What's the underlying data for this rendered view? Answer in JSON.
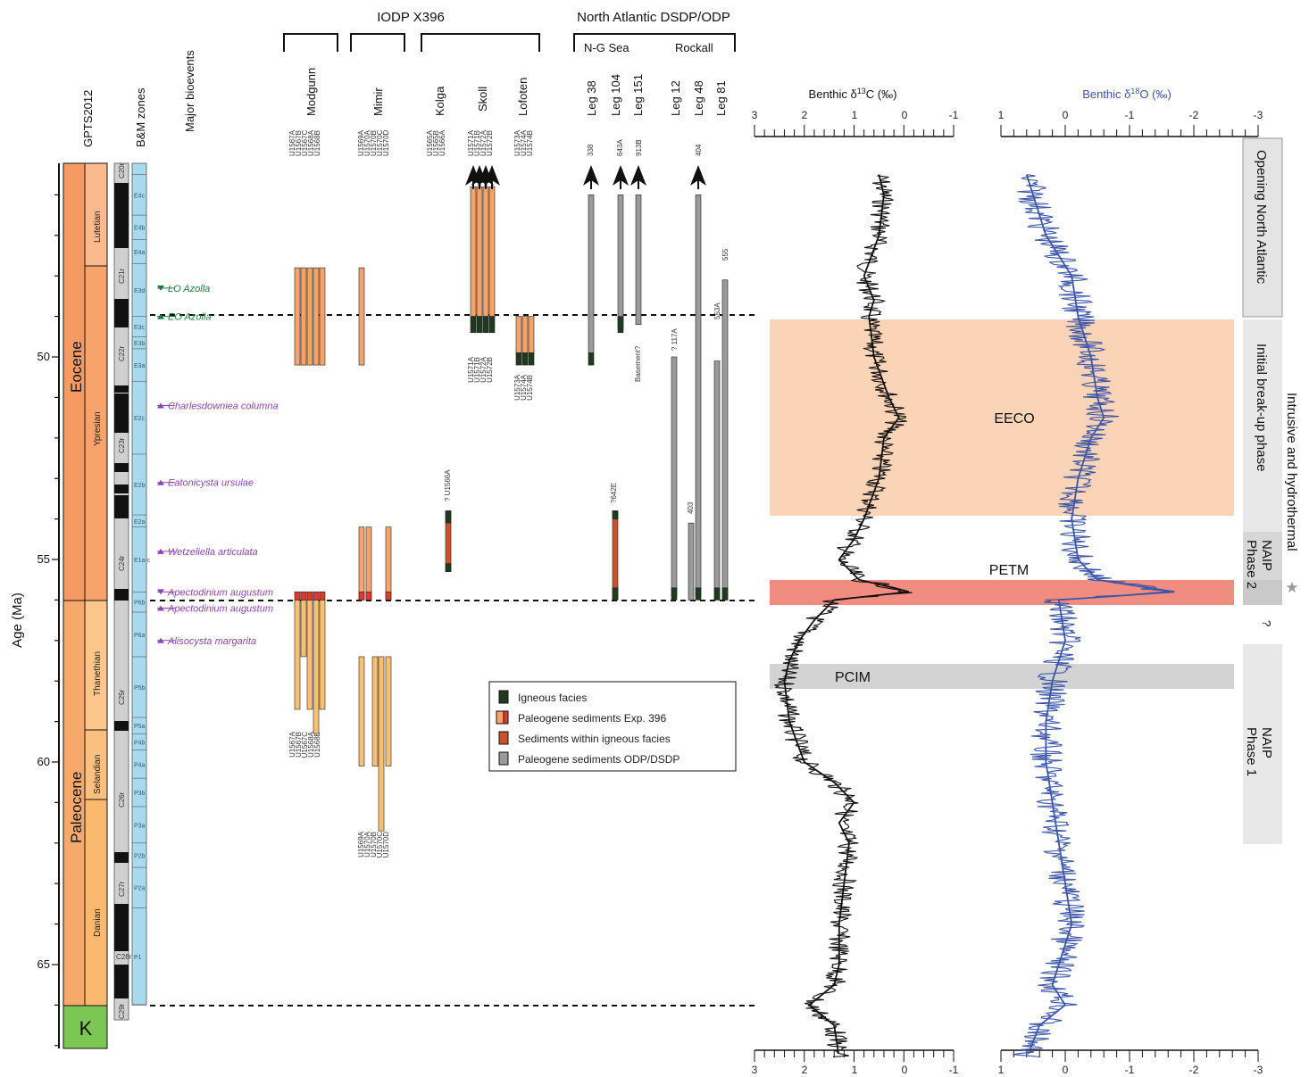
{
  "headers": {
    "gpts": "GPTS2012",
    "bm": "B&M zones",
    "bio": "Major bioevents",
    "iodp": "IODP X396",
    "nadsdp": "North Atlantic DSDP/ODP",
    "ng_sea": "N-G Sea",
    "rockall": "Rockall"
  },
  "y_axis": {
    "label": "Age (Ma)",
    "ticks": [
      "50",
      "55",
      "60",
      "65"
    ]
  },
  "epochs": [
    "Eocene",
    "Paleocene",
    "K"
  ],
  "stages": [
    "Lutetian",
    "Ypresian",
    "Thanethian",
    "Selandian",
    "Danian"
  ],
  "chrons": [
    "C20r",
    "C21r",
    "C22r",
    "C23r",
    "C24r",
    "C25r",
    "C26r",
    "C27r",
    "C28r",
    "C29r"
  ],
  "bm_zones": [
    "E4c",
    "E4b",
    "E4a",
    "E3d",
    "E3c",
    "E3b",
    "E3a",
    "E2c",
    "E2b",
    "E2a",
    "E1a-c",
    "P6b",
    "P6a",
    "P5b",
    "P5a",
    "P4b",
    "P4a",
    "P3b",
    "P3a",
    "P2b",
    "P2a",
    "P1"
  ],
  "bioevents": [
    {
      "name": "LO Azolla",
      "age": 48.3,
      "type": "LO",
      "color": "#1e7a3c"
    },
    {
      "name": "EO Azolla",
      "age": 49.0,
      "type": "EO",
      "color": "#1e7a3c"
    },
    {
      "name": "Charlesdowniea columna",
      "age": 51.2,
      "type": "EO",
      "color": "#8e44ad"
    },
    {
      "name": "Eatonicysta ursulae",
      "age": 53.1,
      "type": "EO",
      "color": "#8e44ad"
    },
    {
      "name": "Wetzeliella articulata",
      "age": 54.8,
      "type": "EO",
      "color": "#8e44ad"
    },
    {
      "name": "Apectodinium augustum",
      "age": 55.8,
      "type": "LO",
      "color": "#8e44ad"
    },
    {
      "name": "Apectodinium augustum",
      "age": 56.2,
      "type": "EO",
      "color": "#8e44ad"
    },
    {
      "name": "Alisocysta margarita",
      "age": 57.0,
      "type": "EO",
      "color": "#8e44ad"
    }
  ],
  "sites": {
    "groups": [
      "Modgunn",
      "Mimir",
      "Kolga",
      "Skoll",
      "Lofoten"
    ],
    "legs": [
      "Leg 38",
      "Leg 104",
      "Leg 151",
      "Leg 12",
      "Leg 48",
      "Leg 81"
    ],
    "modgunn_holes": [
      "U1567A",
      "U1567B",
      "U1567C",
      "U1568A",
      "U1568B"
    ],
    "mimir_holes": [
      "U1569A",
      "U1570A",
      "U1570B",
      "U1570C",
      "U1570D"
    ],
    "kolga_holes": [
      "U1565A",
      "U1565B",
      "U1566A"
    ],
    "skoll_holes": [
      "U1571A",
      "U1571B",
      "U1572A",
      "U1572B"
    ],
    "lofoten_holes": [
      "U1573A",
      "U1574A",
      "U1574B"
    ],
    "dsdp_labels": [
      "338",
      "643A",
      "913B",
      "404",
      "555",
      "553A",
      "117A",
      "403",
      "?642E",
      "? U1566A",
      "Basement?",
      "?"
    ]
  },
  "legend": [
    {
      "label": "Igneous facies",
      "color": "#1f3a1f"
    },
    {
      "label": "Paleogene sediments Exp. 396",
      "color": "#f6a26b"
    },
    {
      "label": "Sediments within igneous facies",
      "color": "#c8532a"
    },
    {
      "label": "Paleogene sediments ODP/DSDP",
      "color": "#9a9a9a"
    }
  ],
  "events": [
    "EECO",
    "PETM",
    "PCIM"
  ],
  "phases": [
    "Opening North Atlantic",
    "Initial break-up phase",
    "NAIP Phase 2",
    "NAIP Phase 1",
    "Intrusive and hydrothermal",
    "?"
  ],
  "colors": {
    "eeco": "#fbd3b6",
    "petm": "#f08c80",
    "pcim": "#d3d3d3",
    "d13c": "#111111",
    "d18o": "#3b56a8",
    "eocene": "#f59a63",
    "paleocene": "#f7a96b",
    "k": "#7cc653",
    "zones": "#a9d9ec",
    "chron_light": "#d0d0d0",
    "chron_dark": "#111111"
  },
  "chart_data": [
    {
      "type": "line",
      "title": "Benthic δ13C (‰)",
      "xlabel": "Benthic δ13C (‰)",
      "ylabel": "Age (Ma)",
      "xlim": [
        3,
        -1
      ],
      "ylim": [
        45.5,
        67.5
      ],
      "x_ticks": [
        "3",
        "2",
        "1",
        "0",
        "-1"
      ],
      "series": [
        {
          "values_age": [
            45.5,
            46,
            47,
            48,
            48.6,
            49,
            50,
            51,
            51.5,
            52,
            53,
            54,
            54.5,
            55,
            55.5,
            55.7,
            55.8,
            56,
            56.5,
            57,
            57.5,
            58,
            59,
            60,
            60.5,
            61,
            61.5,
            62,
            63,
            64,
            65,
            65.5,
            66,
            66.5,
            67.3
          ],
          "values_d13c": [
            0.5,
            0.4,
            0.5,
            0.8,
            0.6,
            0.7,
            0.6,
            0.3,
            0.1,
            0.4,
            0.5,
            0.8,
            1.0,
            1.3,
            0.9,
            0.2,
            -0.1,
            1.4,
            1.8,
            2.1,
            2.3,
            2.4,
            2.3,
            2.0,
            1.4,
            1.0,
            1.3,
            1.1,
            1.2,
            1.3,
            1.3,
            1.4,
            1.9,
            1.4,
            1.3
          ]
        }
      ]
    },
    {
      "type": "line",
      "title": "Benthic δ18O (‰)",
      "xlabel": "Benthic δ18O (‰)",
      "ylabel": "Age (Ma)",
      "xlim": [
        1,
        -3
      ],
      "ylim": [
        45.5,
        67.5
      ],
      "x_ticks": [
        "1",
        "0",
        "-1",
        "-2",
        "-3"
      ],
      "series": [
        {
          "values_age": [
            45.5,
            46,
            47,
            48,
            49,
            50,
            51,
            51.5,
            52,
            53,
            54,
            55,
            55.5,
            55.8,
            56,
            57,
            58,
            59,
            60,
            61,
            62,
            63,
            64,
            65,
            65.5,
            66,
            66.5,
            67.3
          ],
          "values_d18o": [
            0.6,
            0.5,
            0.3,
            -0.1,
            -0.2,
            -0.4,
            -0.5,
            -0.6,
            -0.4,
            -0.2,
            -0.1,
            -0.2,
            -0.5,
            -1.7,
            0.1,
            0.0,
            0.2,
            0.3,
            0.3,
            0.2,
            0.1,
            0.0,
            -0.1,
            0.1,
            0.2,
            0.0,
            0.4,
            0.6
          ]
        }
      ]
    }
  ]
}
